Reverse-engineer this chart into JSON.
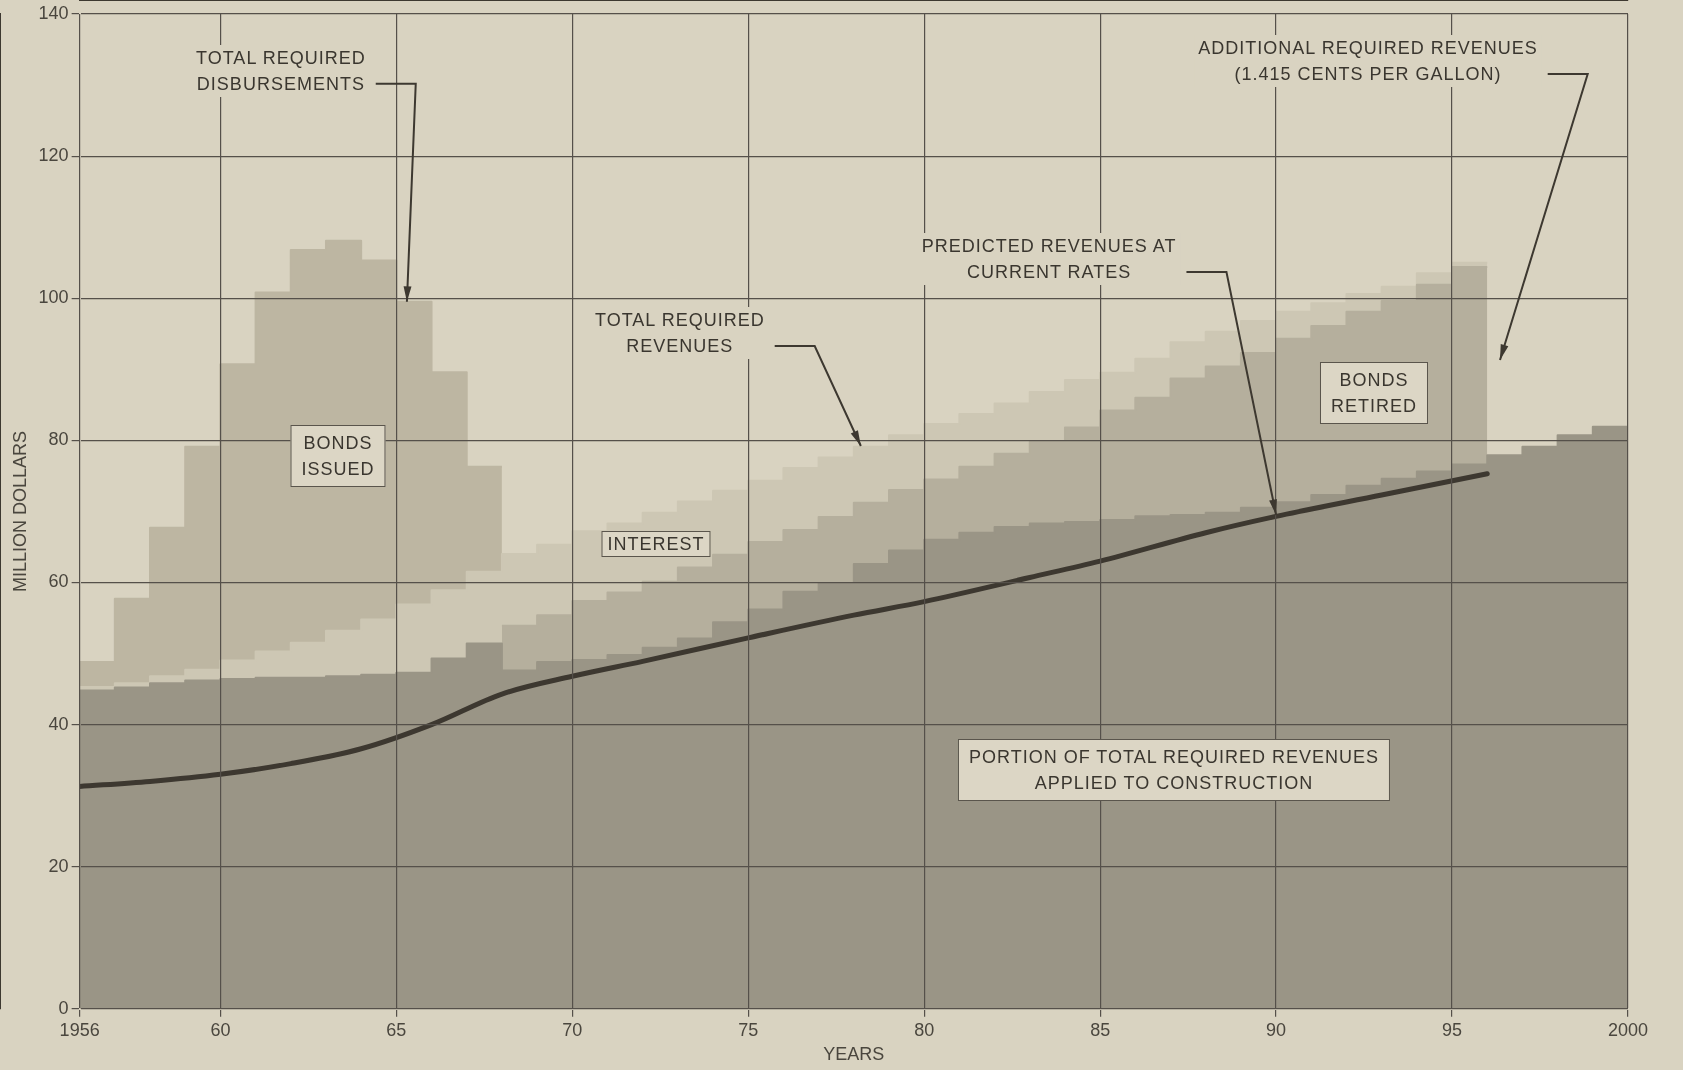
{
  "chart_data": {
    "type": "area",
    "xlabel": "YEARS",
    "ylabel": "MILLION DOLLARS",
    "xlim": [
      1956,
      2000
    ],
    "xticks": [
      1956,
      {
        "value": 1960,
        "label": "60"
      },
      {
        "value": 1965,
        "label": "65"
      },
      {
        "value": 1970,
        "label": "70"
      },
      {
        "value": 1975,
        "label": "75"
      },
      {
        "value": 1980,
        "label": "80"
      },
      {
        "value": 1985,
        "label": "85"
      },
      {
        "value": 1990,
        "label": "90"
      },
      {
        "value": 1995,
        "label": "95"
      },
      2000
    ],
    "ylim": [
      0,
      140
    ],
    "yticks": [
      0,
      20,
      40,
      60,
      80,
      100,
      120,
      140
    ],
    "grid": true,
    "legend": false,
    "marker": "none",
    "series": [
      {
        "type": "line",
        "color": "#3d3830",
        "x": [
          1956,
          1958,
          1960,
          1962,
          1964,
          1966,
          1968,
          1970,
          1972,
          1975,
          1978,
          1980,
          1983,
          1985,
          1988,
          1990,
          1993,
          1996
        ],
        "values": [
          31.3,
          32.0,
          33.0,
          34.5,
          36.6,
          40.0,
          44.3,
          46.8,
          48.9,
          52.2,
          55.4,
          57.3,
          60.7,
          63.0,
          67.0,
          69.3,
          72.3,
          75.3
        ]
      },
      {
        "color": "#9a9586",
        "x": [
          1956,
          1957,
          1957,
          1958,
          1958,
          1959,
          1959,
          1960,
          1960,
          1961,
          1961,
          1962,
          1962,
          1963,
          1963,
          1964,
          1964,
          1965,
          1965,
          1966,
          1966,
          1967,
          1967,
          1968,
          1968,
          1969,
          1969,
          1970,
          1970,
          1971,
          1971,
          1972,
          1972,
          1973,
          1973,
          1974,
          1974,
          1975,
          1975,
          1976,
          1976,
          1977,
          1977,
          1978,
          1978,
          1979,
          1979,
          1980,
          1980,
          1981,
          1981,
          1982,
          1982,
          1983,
          1983,
          1984,
          1984,
          1985,
          1985,
          1986,
          1986,
          1987,
          1987,
          1988,
          1988,
          1989,
          1989,
          1990,
          1990,
          1991,
          1991,
          1992,
          1992,
          1993,
          1993,
          1994,
          1994,
          1995,
          1995,
          1996,
          1996,
          1997,
          1997,
          1998,
          1998,
          1999,
          1999,
          2000
        ],
        "values": [
          44.8,
          44.8,
          45.2,
          45.2,
          45.8,
          45.8,
          46.2,
          46.2,
          46.4,
          46.4,
          46.6,
          46.6,
          46.6,
          46.6,
          46.8,
          46.8,
          47.0,
          47.0,
          47.3,
          47.3,
          49.3,
          49.3,
          51.4,
          51.4,
          47.6,
          47.6,
          48.8,
          48.8,
          49.1,
          49.1,
          49.8,
          49.8,
          50.8,
          50.8,
          52.1,
          52.1,
          54.4,
          54.4,
          56.2,
          56.2,
          58.7,
          58.7,
          59.9,
          59.9,
          62.6,
          62.6,
          64.5,
          64.5,
          66.0,
          66.0,
          67.0,
          67.0,
          67.8,
          67.8,
          68.3,
          68.3,
          68.5,
          68.5,
          68.8,
          68.8,
          69.3,
          69.3,
          69.5,
          69.5,
          69.8,
          69.8,
          70.5,
          70.5,
          71.3,
          71.3,
          72.3,
          72.3,
          73.6,
          73.6,
          74.6,
          74.6,
          75.6,
          75.6,
          76.6,
          76.6,
          77.9,
          77.9,
          79.1,
          79.1,
          80.7,
          80.7,
          81.9,
          81.9
        ]
      },
      {
        "color": "#b5af9d",
        "x": [
          1968,
          1969,
          1969,
          1970,
          1970,
          1971,
          1971,
          1972,
          1972,
          1973,
          1973,
          1974,
          1974,
          1975,
          1975,
          1976,
          1976,
          1977,
          1977,
          1978,
          1978,
          1979,
          1979,
          1980,
          1980,
          1981,
          1981,
          1982,
          1982,
          1983,
          1983,
          1984,
          1984,
          1985,
          1985,
          1986,
          1986,
          1987,
          1987,
          1988,
          1988,
          1989,
          1989,
          1990,
          1990,
          1991,
          1991,
          1992,
          1992,
          1993,
          1993,
          1994,
          1994,
          1995,
          1995,
          1996
        ],
        "values": [
          53.9,
          53.9,
          55.4,
          55.4,
          57.4,
          57.4,
          58.6,
          58.6,
          60.1,
          60.1,
          62.1,
          62.1,
          63.9,
          63.9,
          65.7,
          65.7,
          67.4,
          67.4,
          69.2,
          69.2,
          71.2,
          71.2,
          73.0,
          73.0,
          74.5,
          74.5,
          76.3,
          76.3,
          78.1,
          78.1,
          79.8,
          79.8,
          81.8,
          81.8,
          84.2,
          84.2,
          86.0,
          86.0,
          88.7,
          88.7,
          90.4,
          90.4,
          92.3,
          92.3,
          94.3,
          94.3,
          96.1,
          96.1,
          98.1,
          98.1,
          99.6,
          99.6,
          101.9,
          101.9,
          104.4,
          104.4
        ]
      },
      {
        "color": "#cdc7b4",
        "x": [
          1956,
          1957,
          1957,
          1958,
          1958,
          1959,
          1959,
          1960,
          1960,
          1961,
          1961,
          1962,
          1962,
          1963,
          1963,
          1964,
          1964,
          1965,
          1965,
          1966,
          1966,
          1967,
          1967,
          1968,
          1968,
          1969,
          1969,
          1970,
          1970,
          1971,
          1971,
          1972,
          1972,
          1973,
          1973,
          1974,
          1974,
          1975,
          1975,
          1976,
          1976,
          1977,
          1977,
          1978,
          1978,
          1979,
          1979,
          1980,
          1980,
          1981,
          1981,
          1982,
          1982,
          1983,
          1983,
          1984,
          1984,
          1985,
          1985,
          1986,
          1986,
          1987,
          1987,
          1988,
          1988,
          1989,
          1989,
          1990,
          1990,
          1991,
          1991,
          1992,
          1992,
          1993,
          1993,
          1994,
          1994,
          1995,
          1995,
          1996
        ],
        "values": [
          45.3,
          45.3,
          45.8,
          45.8,
          46.8,
          46.8,
          47.7,
          47.7,
          49.0,
          49.0,
          50.3,
          50.3,
          51.5,
          51.5,
          53.2,
          53.2,
          54.8,
          54.8,
          56.9,
          56.9,
          58.9,
          58.9,
          61.5,
          61.5,
          64.0,
          64.0,
          65.3,
          65.3,
          67.2,
          67.2,
          68.3,
          68.3,
          69.8,
          69.8,
          71.4,
          71.4,
          72.9,
          72.9,
          74.3,
          74.3,
          76.1,
          76.1,
          77.6,
          77.6,
          79.1,
          79.1,
          80.7,
          80.7,
          82.3,
          82.3,
          83.7,
          83.7,
          85.2,
          85.2,
          86.8,
          86.8,
          88.5,
          88.5,
          89.5,
          89.5,
          91.5,
          91.5,
          93.8,
          93.8,
          95.3,
          95.3,
          96.8,
          96.8,
          98.1,
          98.1,
          99.3,
          99.3,
          100.6,
          100.6,
          101.6,
          101.6,
          103.5,
          103.5,
          105.0,
          105.0
        ]
      },
      {
        "color": "#bdb6a2",
        "x": [
          1956,
          1957,
          1957,
          1958,
          1958,
          1959,
          1959,
          1960,
          1960,
          1961,
          1961,
          1962,
          1962,
          1963,
          1963,
          1964,
          1964,
          1965,
          1965,
          1966,
          1966,
          1967,
          1967,
          1968
        ],
        "values": [
          48.8,
          48.8,
          57.7,
          57.7,
          67.7,
          67.7,
          79.1,
          79.1,
          90.7,
          90.7,
          100.8,
          100.8,
          106.8,
          106.8,
          108.1,
          108.1,
          105.3,
          105.3,
          99.5,
          99.5,
          89.6,
          89.6,
          76.3,
          76.3
        ]
      }
    ],
    "annotations": [
      {
        "text": "TOTAL REQUIRED\nDISBURSEMENTS",
        "x": 1965.3,
        "y": 99.5
      },
      "BONDS\nISSUED",
      {
        "text": "TOTAL REQUIRED\nREVENUES",
        "x": 1978.2,
        "y": 79.2
      },
      "INTEREST",
      {
        "text": "PREDICTED REVENUES AT\nCURRENT RATES",
        "x": 1990,
        "y": 69.5
      },
      "BONDS\nRETIRED",
      "ADDITIONAL REQUIRED REVENUES\n(1.415 CENTS PER GALLON)",
      "PORTION OF TOTAL REQUIRED REVENUES\nAPPLIED TO CONSTRUCTION"
    ]
  }
}
